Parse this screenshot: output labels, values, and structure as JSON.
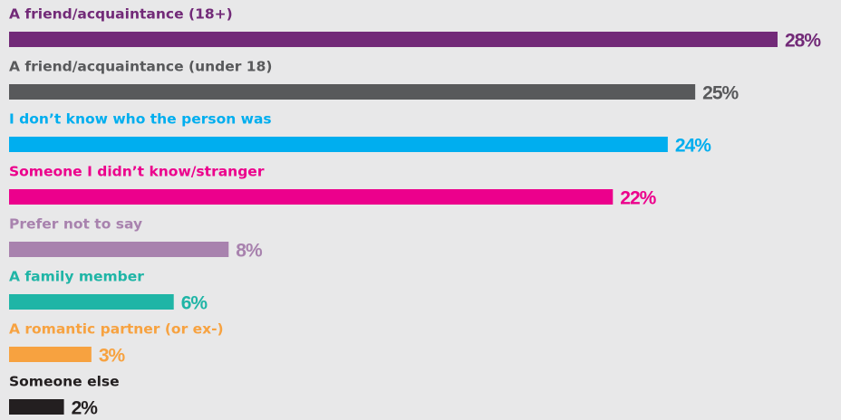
{
  "chart_data": {
    "type": "bar",
    "orientation": "horizontal",
    "categories": [
      "A friend/acquaintance (18+)",
      "A friend/acquaintance (under 18)",
      "I don’t know who the person was",
      "Someone I didn’t know/stranger",
      "Prefer not to say",
      "A family member",
      "A romantic partner (or ex-)",
      "Someone else"
    ],
    "values": [
      28,
      25,
      24,
      22,
      8,
      6,
      3,
      2
    ],
    "value_labels": [
      "28%",
      "25%",
      "24%",
      "22%",
      "8%",
      "6%",
      "3%",
      "2%"
    ],
    "colors": [
      "#722a78",
      "#58595b",
      "#00aeef",
      "#ec008c",
      "#a882ae",
      "#1fb5a6",
      "#f7a240",
      "#231f20"
    ]
  }
}
